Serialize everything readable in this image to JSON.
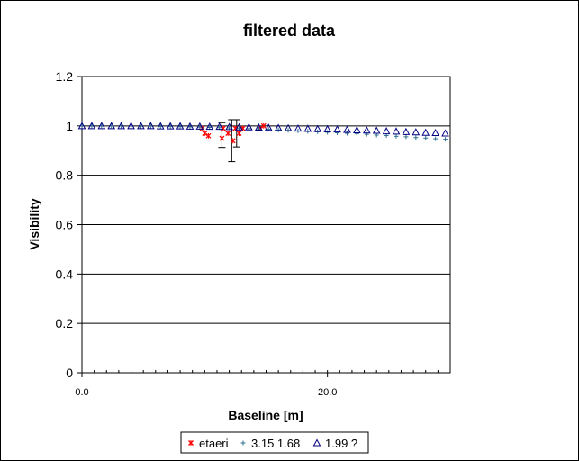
{
  "chart_data": {
    "type": "scatter",
    "title": "filtered data",
    "xlabel": "Baseline [m]",
    "ylabel": "Visibility",
    "xlim": [
      0,
      30
    ],
    "ylim": [
      0,
      1.2
    ],
    "xticks": [
      0,
      20
    ],
    "xtick_labels": [
      "0.0",
      "20.0"
    ],
    "yticks": [
      0,
      0.2,
      0.4,
      0.6,
      0.8,
      1.0,
      1.2
    ],
    "ytick_labels": [
      "0",
      "0.2",
      "0.4",
      "0.6",
      "0.8",
      "1",
      "1.2"
    ],
    "grid": "horizontal",
    "legend_position": "bottom",
    "series": [
      {
        "name": "etaeri",
        "marker": "x",
        "color": "#ff0000",
        "points": [
          {
            "x": 9.8,
            "y": 0.99
          },
          {
            "x": 10.0,
            "y": 0.97
          },
          {
            "x": 10.3,
            "y": 0.96
          },
          {
            "x": 11.4,
            "y": 0.95
          },
          {
            "x": 11.5,
            "y": 0.99
          },
          {
            "x": 11.9,
            "y": 0.97
          },
          {
            "x": 12.3,
            "y": 0.94
          },
          {
            "x": 12.5,
            "y": 0.99
          },
          {
            "x": 12.8,
            "y": 0.97
          },
          {
            "x": 13.1,
            "y": 0.99
          },
          {
            "x": 14.5,
            "y": 0.99
          },
          {
            "x": 14.8,
            "y": 1.0
          }
        ],
        "error_bars": [
          {
            "x": 11.4,
            "y": 0.963,
            "err": 0.05
          },
          {
            "x": 12.2,
            "y": 0.94,
            "err": 0.085
          },
          {
            "x": 12.6,
            "y": 0.97,
            "err": 0.055
          }
        ]
      },
      {
        "name": "3.15 1.68",
        "marker": "+",
        "color": "#2f6f8f",
        "points": [
          {
            "x": 0,
            "y": 1.0
          },
          {
            "x": 0.8,
            "y": 1.0
          },
          {
            "x": 1.6,
            "y": 1.0
          },
          {
            "x": 2.4,
            "y": 1.0
          },
          {
            "x": 3.2,
            "y": 1.0
          },
          {
            "x": 4.0,
            "y": 0.999
          },
          {
            "x": 4.8,
            "y": 0.999
          },
          {
            "x": 5.6,
            "y": 0.999
          },
          {
            "x": 6.4,
            "y": 0.998
          },
          {
            "x": 7.2,
            "y": 0.998
          },
          {
            "x": 8.0,
            "y": 0.997
          },
          {
            "x": 8.8,
            "y": 0.996
          },
          {
            "x": 9.6,
            "y": 0.995
          },
          {
            "x": 10.4,
            "y": 0.994
          },
          {
            "x": 11.2,
            "y": 0.993
          },
          {
            "x": 12.0,
            "y": 0.992
          },
          {
            "x": 12.8,
            "y": 0.991
          },
          {
            "x": 13.6,
            "y": 0.989
          },
          {
            "x": 14.4,
            "y": 0.988
          },
          {
            "x": 15.2,
            "y": 0.986
          },
          {
            "x": 16.0,
            "y": 0.984
          },
          {
            "x": 16.8,
            "y": 0.982
          },
          {
            "x": 17.6,
            "y": 0.98
          },
          {
            "x": 18.4,
            "y": 0.978
          },
          {
            "x": 19.2,
            "y": 0.976
          },
          {
            "x": 20.0,
            "y": 0.974
          },
          {
            "x": 20.8,
            "y": 0.972
          },
          {
            "x": 21.6,
            "y": 0.97
          },
          {
            "x": 22.4,
            "y": 0.968
          },
          {
            "x": 23.2,
            "y": 0.966
          },
          {
            "x": 24.0,
            "y": 0.963
          },
          {
            "x": 24.8,
            "y": 0.961
          },
          {
            "x": 25.6,
            "y": 0.958
          },
          {
            "x": 26.4,
            "y": 0.956
          },
          {
            "x": 27.2,
            "y": 0.953
          },
          {
            "x": 28.0,
            "y": 0.951
          },
          {
            "x": 28.8,
            "y": 0.948
          },
          {
            "x": 29.6,
            "y": 0.946
          }
        ]
      },
      {
        "name": "1.99 ?",
        "marker": "triangle",
        "color": "#000080",
        "points": [
          {
            "x": 0,
            "y": 1.0
          },
          {
            "x": 0.8,
            "y": 1.0
          },
          {
            "x": 1.6,
            "y": 1.0
          },
          {
            "x": 2.4,
            "y": 1.0
          },
          {
            "x": 3.2,
            "y": 1.0
          },
          {
            "x": 4.0,
            "y": 1.0
          },
          {
            "x": 4.8,
            "y": 1.0
          },
          {
            "x": 5.6,
            "y": 1.0
          },
          {
            "x": 6.4,
            "y": 0.999
          },
          {
            "x": 7.2,
            "y": 0.999
          },
          {
            "x": 8.0,
            "y": 0.999
          },
          {
            "x": 8.8,
            "y": 0.998
          },
          {
            "x": 9.6,
            "y": 0.998
          },
          {
            "x": 10.4,
            "y": 0.997
          },
          {
            "x": 11.2,
            "y": 0.997
          },
          {
            "x": 12.0,
            "y": 0.996
          },
          {
            "x": 12.8,
            "y": 0.995
          },
          {
            "x": 13.6,
            "y": 0.995
          },
          {
            "x": 14.4,
            "y": 0.994
          },
          {
            "x": 15.2,
            "y": 0.993
          },
          {
            "x": 16.0,
            "y": 0.992
          },
          {
            "x": 16.8,
            "y": 0.991
          },
          {
            "x": 17.6,
            "y": 0.99
          },
          {
            "x": 18.4,
            "y": 0.989
          },
          {
            "x": 19.2,
            "y": 0.988
          },
          {
            "x": 20.0,
            "y": 0.987
          },
          {
            "x": 20.8,
            "y": 0.986
          },
          {
            "x": 21.6,
            "y": 0.985
          },
          {
            "x": 22.4,
            "y": 0.983
          },
          {
            "x": 23.2,
            "y": 0.982
          },
          {
            "x": 24.0,
            "y": 0.981
          },
          {
            "x": 24.8,
            "y": 0.979
          },
          {
            "x": 25.6,
            "y": 0.978
          },
          {
            "x": 26.4,
            "y": 0.976
          },
          {
            "x": 27.2,
            "y": 0.975
          },
          {
            "x": 28.0,
            "y": 0.973
          },
          {
            "x": 28.8,
            "y": 0.972
          },
          {
            "x": 29.6,
            "y": 0.97
          }
        ]
      }
    ]
  }
}
